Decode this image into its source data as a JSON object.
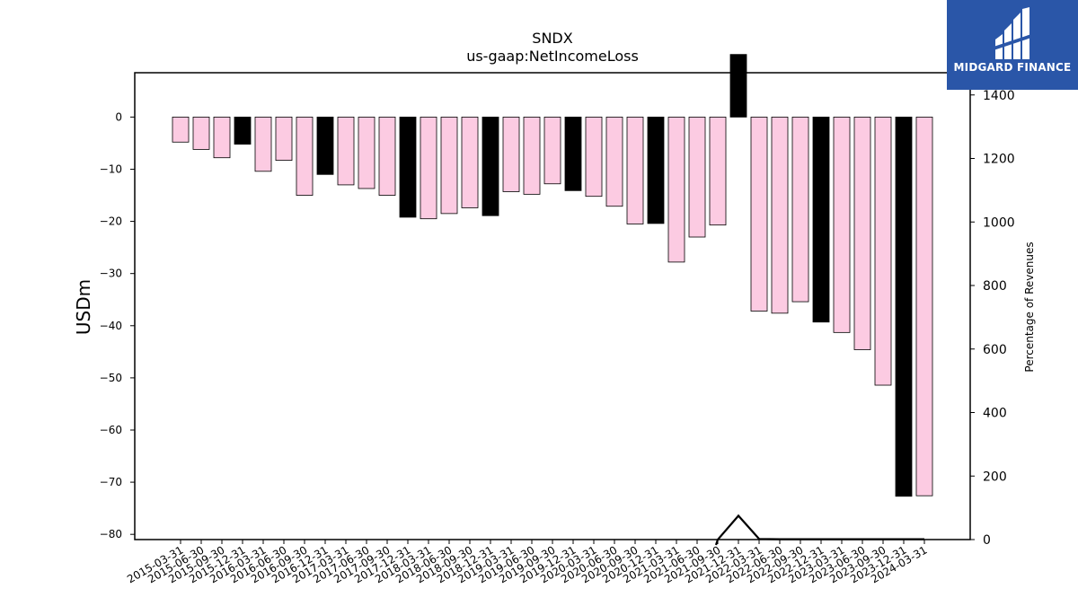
{
  "chart_data": {
    "type": "bar",
    "title": "SNDX",
    "subtitle": "us-gaap:NetIncomeLoss",
    "ylabel": "USDm",
    "y2label": "Percentage of Revenues",
    "ylim": [
      -81,
      8.5
    ],
    "y2lim": [
      0,
      1470
    ],
    "yticks": [
      0,
      -10,
      -20,
      -30,
      -40,
      -50,
      -60,
      -70,
      -80
    ],
    "y2ticks": [
      0,
      200,
      400,
      600,
      800,
      1000,
      1200,
      1400
    ],
    "categories": [
      "2015-03-31",
      "2015-06-30",
      "2015-09-30",
      "2015-12-31",
      "2016-03-31",
      "2016-06-30",
      "2016-09-30",
      "2016-12-31",
      "2017-03-31",
      "2017-06-30",
      "2017-09-30",
      "2017-12-31",
      "2018-03-31",
      "2018-06-30",
      "2018-09-30",
      "2018-12-31",
      "2019-03-31",
      "2019-06-30",
      "2019-09-30",
      "2019-12-31",
      "2020-03-31",
      "2020-06-30",
      "2020-09-30",
      "2020-12-31",
      "2021-03-31",
      "2021-06-30",
      "2021-09-30",
      "2021-12-31",
      "2022-03-31",
      "2022-06-30",
      "2022-09-30",
      "2022-12-31",
      "2023-03-31",
      "2023-06-30",
      "2023-09-30",
      "2023-12-31",
      "2024-03-31"
    ],
    "values": [
      -4.8,
      -6.2,
      -7.8,
      -5.2,
      -10.4,
      -8.3,
      -15.0,
      -11.0,
      -13.0,
      -13.7,
      -15.0,
      -19.2,
      -19.5,
      -18.5,
      -17.4,
      -18.9,
      -14.3,
      -14.8,
      -12.8,
      -14.1,
      -15.2,
      -17.1,
      -20.5,
      -20.4,
      -27.8,
      -23.0,
      -20.7,
      12.0,
      -37.2,
      -37.6,
      -35.4,
      -39.3,
      -41.3,
      -44.6,
      -51.4,
      -72.7,
      -72.6
    ],
    "highlight": [
      false,
      false,
      false,
      true,
      false,
      false,
      false,
      true,
      false,
      false,
      false,
      true,
      false,
      false,
      false,
      true,
      false,
      false,
      false,
      true,
      false,
      false,
      false,
      true,
      false,
      false,
      false,
      true,
      false,
      false,
      false,
      true,
      false,
      false,
      false,
      true,
      false
    ],
    "secondary_line": {
      "x": [
        "2021-09-30",
        "2021-12-31",
        "2022-03-31",
        "2022-06-30",
        "2022-09-30",
        "2022-12-31",
        "2023-03-31",
        "2023-06-30",
        "2023-09-30",
        "2023-12-31",
        "2024-03-31"
      ],
      "values": [
        0,
        75,
        2,
        1,
        1,
        1,
        1,
        1,
        1,
        1,
        1
      ]
    },
    "colors": {
      "bar": "#fccbe2",
      "bar_highlight": "#000000",
      "edge": "#000000",
      "line": "#000000"
    },
    "grid": false,
    "legend": "none"
  },
  "logo": {
    "name": "MIDGARD FINANCE",
    "background": "#2a56a8",
    "icon": "midgard-mark-icon"
  }
}
